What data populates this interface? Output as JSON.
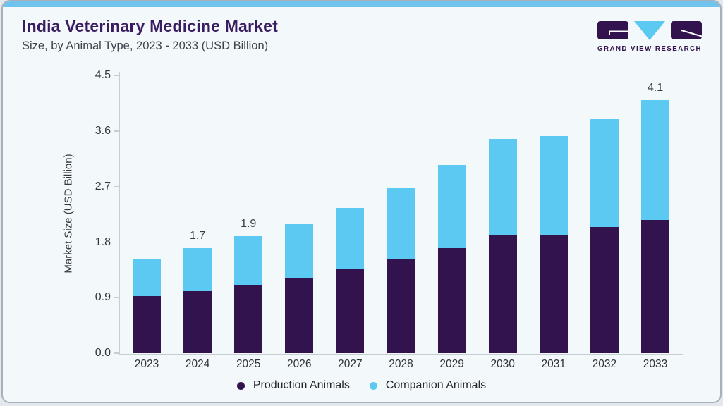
{
  "header": {
    "title": "India Veterinary Medicine Market",
    "subtitle": "Size, by Animal Type, 2023 - 2033 (USD Billion)"
  },
  "logo": {
    "brand": "GRAND VIEW RESEARCH"
  },
  "chart_data": {
    "type": "bar",
    "stacked": true,
    "title": "India Veterinary Medicine Market Size, by Animal Type, 2023 - 2033 (USD Billion)",
    "categories": [
      "2023",
      "2024",
      "2025",
      "2026",
      "2027",
      "2028",
      "2029",
      "2030",
      "2031",
      "2032",
      "2033"
    ],
    "series": [
      {
        "name": "Production Animals",
        "color": "#32134d",
        "values": [
          0.93,
          1.01,
          1.11,
          1.21,
          1.36,
          1.53,
          1.7,
          1.92,
          1.92,
          2.05,
          2.16
        ]
      },
      {
        "name": "Companion Animals",
        "color": "#5cc9f2",
        "values": [
          0.6,
          0.69,
          0.79,
          0.88,
          1.0,
          1.15,
          1.35,
          1.56,
          1.6,
          1.74,
          1.94
        ]
      }
    ],
    "totals": [
      1.53,
      1.7,
      1.9,
      2.09,
      2.36,
      2.68,
      3.05,
      3.48,
      3.52,
      3.79,
      4.1
    ],
    "bar_labels": {
      "2024": "1.7",
      "2025": "1.9",
      "2033": "4.1"
    },
    "xlabel": "",
    "ylabel": "Market Size (USD Billion)",
    "ylim": [
      0,
      4.5
    ],
    "yticks": [
      "0.0",
      "0.9",
      "1.8",
      "2.7",
      "3.6",
      "4.5"
    ],
    "grid": false,
    "legend_position": "bottom"
  },
  "colors": {
    "accent_strip": "#6fc3ec",
    "title": "#3a1c60",
    "production": "#32134d",
    "companion": "#5cc9f2",
    "card_background": "#f3f8fb"
  }
}
